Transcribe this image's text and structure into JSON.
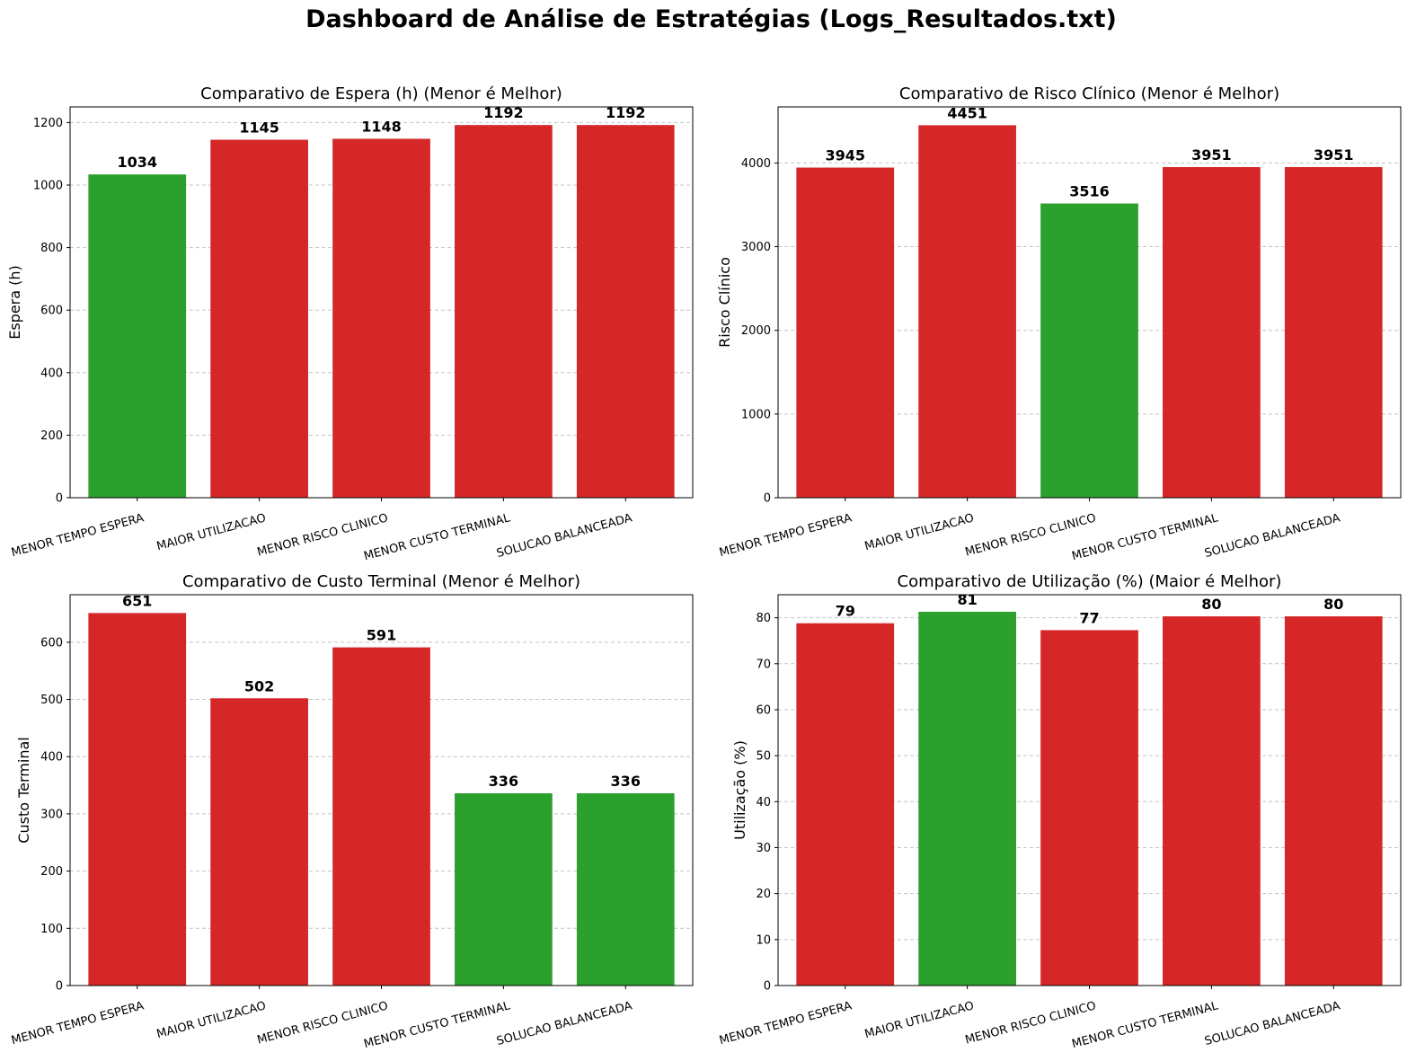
{
  "figure": {
    "title": "Dashboard de Análise de Estratégias (Logs_Resultados.txt)"
  },
  "colors": {
    "best": "#2ca02c",
    "other": "#d62728",
    "grid": "#c4c4c4",
    "axis": "#000000"
  },
  "chart_data": [
    {
      "type": "bar",
      "title": "Comparativo de Espera (h) (Menor é Melhor)",
      "xlabel": "",
      "ylabel": "Espera (h)",
      "categories": [
        "MENOR TEMPO ESPERA",
        "MAIOR UTILIZACAO",
        "MENOR RISCO CLINICO",
        "MENOR CUSTO TERMINAL",
        "SOLUCAO BALANCEADA"
      ],
      "values": [
        1034,
        1145,
        1148,
        1192,
        1192
      ],
      "labels": [
        "1034",
        "1145",
        "1148",
        "1192",
        "1192"
      ],
      "highlight": [
        true,
        false,
        false,
        false,
        false
      ],
      "ylim": [
        0,
        1250
      ],
      "yticks": [
        0,
        200,
        400,
        600,
        800,
        1000,
        1200
      ],
      "grid": "y, dashed"
    },
    {
      "type": "bar",
      "title": "Comparativo de Risco Clínico (Menor é Melhor)",
      "xlabel": "",
      "ylabel": "Risco Clínico",
      "categories": [
        "MENOR TEMPO ESPERA",
        "MAIOR UTILIZACAO",
        "MENOR RISCO CLINICO",
        "MENOR CUSTO TERMINAL",
        "SOLUCAO BALANCEADA"
      ],
      "values": [
        3945,
        4451,
        3516,
        3951,
        3951
      ],
      "labels": [
        "3945",
        "4451",
        "3516",
        "3951",
        "3951"
      ],
      "highlight": [
        false,
        false,
        true,
        false,
        false
      ],
      "ylim": [
        0,
        4670
      ],
      "yticks": [
        0,
        1000,
        2000,
        3000,
        4000
      ],
      "grid": "y, dashed"
    },
    {
      "type": "bar",
      "title": "Comparativo de Custo Terminal (Menor é Melhor)",
      "xlabel": "",
      "ylabel": "Custo Terminal",
      "categories": [
        "MENOR TEMPO ESPERA",
        "MAIOR UTILIZACAO",
        "MENOR RISCO CLINICO",
        "MENOR CUSTO TERMINAL",
        "SOLUCAO BALANCEADA"
      ],
      "values": [
        651,
        502,
        591,
        336,
        336
      ],
      "labels": [
        "651",
        "502",
        "591",
        "336",
        "336"
      ],
      "highlight": [
        false,
        false,
        false,
        true,
        true
      ],
      "ylim": [
        0,
        683
      ],
      "yticks": [
        0,
        100,
        200,
        300,
        400,
        500,
        600
      ],
      "grid": "y, dashed"
    },
    {
      "type": "bar",
      "title": "Comparativo de Utilização (%) (Maior é Melhor)",
      "xlabel": "",
      "ylabel": "Utilização (%)",
      "categories": [
        "MENOR TEMPO ESPERA",
        "MAIOR UTILIZACAO",
        "MENOR RISCO CLINICO",
        "MENOR CUSTO TERMINAL",
        "SOLUCAO BALANCEADA"
      ],
      "values": [
        78.8,
        81.3,
        77.3,
        80.3,
        80.3
      ],
      "labels": [
        "79",
        "81",
        "77",
        "80",
        "80"
      ],
      "highlight": [
        false,
        true,
        false,
        false,
        false
      ],
      "ylim": [
        0,
        85
      ],
      "yticks": [
        0,
        10,
        20,
        30,
        40,
        50,
        60,
        70,
        80
      ],
      "grid": "y, dashed"
    }
  ]
}
